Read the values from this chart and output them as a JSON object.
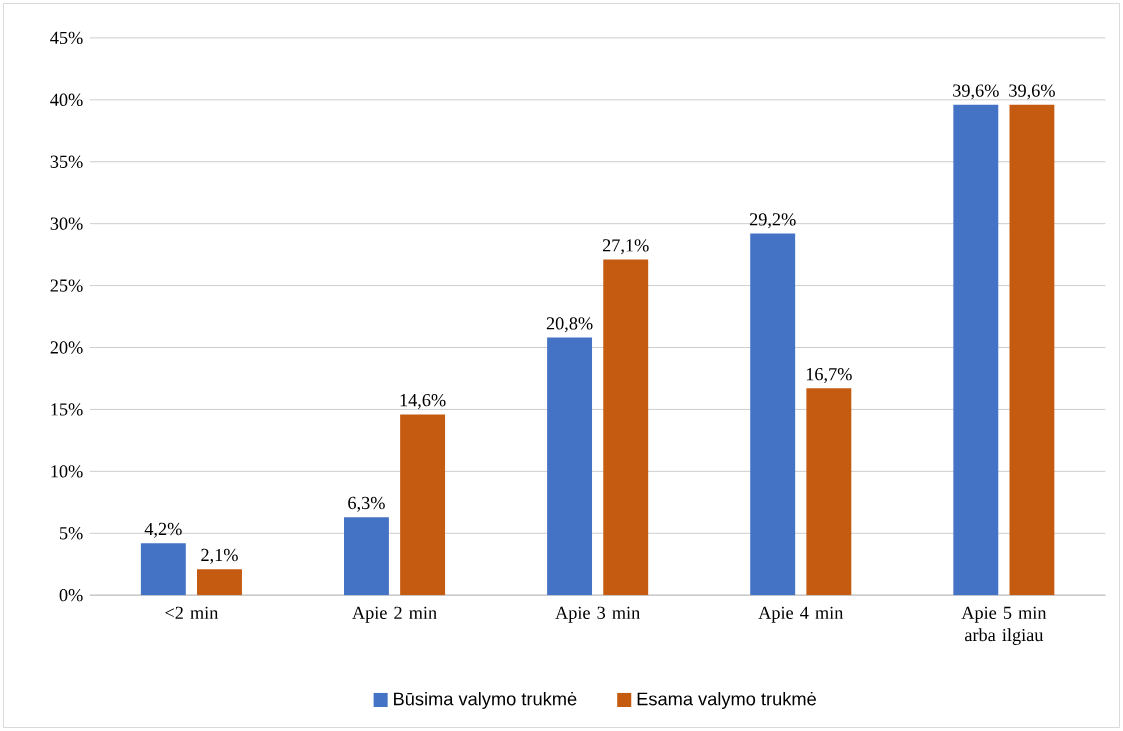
{
  "chart_data": {
    "type": "bar",
    "categories": [
      "<2 min",
      "Apie 2 min",
      "Apie 3 min",
      "Apie 4 min",
      "Apie 5 min arba ilgiau"
    ],
    "series": [
      {
        "name": "Būsima valymo trukmė",
        "color": "#4472c4",
        "values": [
          4.2,
          6.3,
          20.8,
          29.2,
          39.6
        ],
        "value_labels": [
          "4,2%",
          "6,3%",
          "20,8%",
          "29,2%",
          "39,6%"
        ]
      },
      {
        "name": "Esama valymo trukmė",
        "color": "#c55a11",
        "values": [
          2.1,
          14.6,
          27.1,
          16.7,
          39.6
        ],
        "value_labels": [
          "2,1%",
          "14,6%",
          "27,1%",
          "16,7%",
          "39,6%"
        ]
      }
    ],
    "ylim": [
      0,
      45
    ],
    "yticks": [
      {
        "value": 0,
        "label": "0%"
      },
      {
        "value": 5,
        "label": "5%"
      },
      {
        "value": 10,
        "label": "10%"
      },
      {
        "value": 15,
        "label": "15%"
      },
      {
        "value": 20,
        "label": "20%"
      },
      {
        "value": 25,
        "label": "25%"
      },
      {
        "value": 30,
        "label": "30%"
      },
      {
        "value": 35,
        "label": "35%"
      },
      {
        "value": 40,
        "label": "40%"
      },
      {
        "value": 45,
        "label": "45%"
      }
    ],
    "grid": "y",
    "legend": "bottom"
  }
}
